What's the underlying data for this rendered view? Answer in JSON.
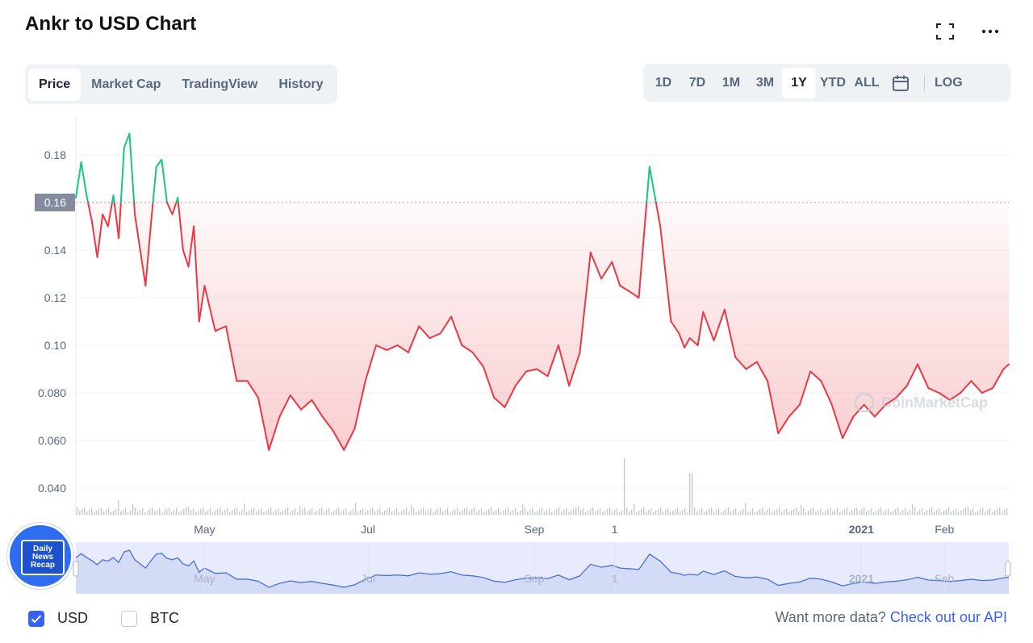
{
  "page": {
    "title": "Ankr to USD Chart"
  },
  "tabs": [
    {
      "label": "Price",
      "active": true
    },
    {
      "label": "Market Cap",
      "active": false
    },
    {
      "label": "TradingView",
      "active": false
    },
    {
      "label": "History",
      "active": false
    }
  ],
  "ranges": [
    {
      "label": "1D",
      "active": false
    },
    {
      "label": "7D",
      "active": false
    },
    {
      "label": "1M",
      "active": false
    },
    {
      "label": "3M",
      "active": false
    },
    {
      "label": "1Y",
      "active": true
    },
    {
      "label": "YTD",
      "active": false
    },
    {
      "label": "ALL",
      "active": false
    }
  ],
  "log_label": "LOG",
  "icons": {
    "fullscreen": "fullscreen-icon",
    "more": "more-icon",
    "calendar": "calendar-icon"
  },
  "currencies": [
    {
      "label": "USD",
      "checked": true
    },
    {
      "label": "BTC",
      "checked": false
    }
  ],
  "api": {
    "prefix": "Want more data?",
    "link": "Check out our API"
  },
  "watermark": "CoinMarketCap",
  "badge": {
    "line1": "Daily",
    "line2": "News",
    "line3": "Recap"
  },
  "colors": {
    "up": "#16c784",
    "down": "#ea3943",
    "accent": "#3861fb",
    "navigator": "#4a6fd3"
  },
  "chart_data": {
    "type": "line",
    "title": "Ankr to USD Chart",
    "ylabel": "",
    "xlabel": "",
    "ylim": [
      0.035,
      0.195
    ],
    "yticks": [
      0.04,
      0.06,
      0.08,
      0.1,
      0.12,
      0.14,
      0.16,
      0.18
    ],
    "ytick_labels": [
      "0.040",
      "0.060",
      "0.080",
      "0.10",
      "0.12",
      "0.14",
      "0.16",
      "0.18"
    ],
    "xlim": [
      "2020-03-14",
      "2021-02-25"
    ],
    "xticks": [
      {
        "label": "May",
        "date": "2020-05-01",
        "bold": false
      },
      {
        "label": "Jul",
        "date": "2020-07-01",
        "bold": false
      },
      {
        "label": "Sep",
        "date": "2020-09-01",
        "bold": false
      },
      {
        "label": "1",
        "date": "2020-10-01",
        "bold": false
      },
      {
        "label": "2021",
        "date": "2021-01-01",
        "bold": true
      },
      {
        "label": "Feb",
        "date": "2021-02-01",
        "bold": false
      }
    ],
    "reference_value": 0.16,
    "reference_label": "0.16",
    "x": [
      "2020-03-14",
      "2020-03-16",
      "2020-03-18",
      "2020-03-20",
      "2020-03-22",
      "2020-03-24",
      "2020-03-26",
      "2020-03-28",
      "2020-03-30",
      "2020-04-01",
      "2020-04-03",
      "2020-04-05",
      "2020-04-07",
      "2020-04-09",
      "2020-04-11",
      "2020-04-13",
      "2020-04-15",
      "2020-04-17",
      "2020-04-19",
      "2020-04-21",
      "2020-04-23",
      "2020-04-25",
      "2020-04-27",
      "2020-04-29",
      "2020-05-01",
      "2020-05-05",
      "2020-05-09",
      "2020-05-13",
      "2020-05-17",
      "2020-05-21",
      "2020-05-25",
      "2020-05-29",
      "2020-06-02",
      "2020-06-06",
      "2020-06-10",
      "2020-06-14",
      "2020-06-18",
      "2020-06-22",
      "2020-06-26",
      "2020-06-30",
      "2020-07-04",
      "2020-07-08",
      "2020-07-12",
      "2020-07-16",
      "2020-07-20",
      "2020-07-24",
      "2020-07-28",
      "2020-08-01",
      "2020-08-05",
      "2020-08-09",
      "2020-08-13",
      "2020-08-17",
      "2020-08-21",
      "2020-08-25",
      "2020-08-29",
      "2020-09-02",
      "2020-09-06",
      "2020-09-10",
      "2020-09-14",
      "2020-09-18",
      "2020-09-22",
      "2020-09-26",
      "2020-09-30",
      "2020-10-03",
      "2020-10-06",
      "2020-10-10",
      "2020-10-14",
      "2020-10-18",
      "2020-10-22",
      "2020-10-25",
      "2020-10-27",
      "2020-10-29",
      "2020-11-01",
      "2020-11-03",
      "2020-11-07",
      "2020-11-11",
      "2020-11-15",
      "2020-11-19",
      "2020-11-23",
      "2020-11-27",
      "2020-12-01",
      "2020-12-05",
      "2020-12-09",
      "2020-12-13",
      "2020-12-17",
      "2020-12-21",
      "2020-12-25",
      "2020-12-29",
      "2021-01-02",
      "2021-01-06",
      "2021-01-10",
      "2021-01-14",
      "2021-01-18",
      "2021-01-22",
      "2021-01-26",
      "2021-01-30",
      "2021-02-03",
      "2021-02-07",
      "2021-02-11",
      "2021-02-15",
      "2021-02-19",
      "2021-02-23",
      "2021-02-25"
    ],
    "series": [
      {
        "values": [
          0.162,
          0.177,
          0.163,
          0.152,
          0.137,
          0.155,
          0.15,
          0.163,
          0.145,
          0.183,
          0.189,
          0.155,
          0.14,
          0.125,
          0.151,
          0.175,
          0.178,
          0.16,
          0.155,
          0.162,
          0.14,
          0.133,
          0.15,
          0.11,
          0.125,
          0.106,
          0.108,
          0.085,
          0.085,
          0.078,
          0.056,
          0.07,
          0.079,
          0.073,
          0.077,
          0.07,
          0.064,
          0.056,
          0.065,
          0.085,
          0.1,
          0.098,
          0.1,
          0.097,
          0.108,
          0.103,
          0.105,
          0.112,
          0.1,
          0.097,
          0.091,
          0.078,
          0.074,
          0.083,
          0.089,
          0.09,
          0.087,
          0.1,
          0.083,
          0.097,
          0.139,
          0.128,
          0.135,
          0.125,
          0.123,
          0.12,
          0.175,
          0.15,
          0.11,
          0.105,
          0.099,
          0.103,
          0.1,
          0.114,
          0.102,
          0.115,
          0.095,
          0.09,
          0.093,
          0.085,
          0.063,
          0.07,
          0.075,
          0.089,
          0.085,
          0.075,
          0.061,
          0.07,
          0.075,
          0.07,
          0.075,
          0.078,
          0.083,
          0.092,
          0.082,
          0.08,
          0.077,
          0.08,
          0.085,
          0.08,
          0.082,
          0.09,
          0.092
        ]
      }
    ],
    "legend": "none",
    "grid": true
  }
}
